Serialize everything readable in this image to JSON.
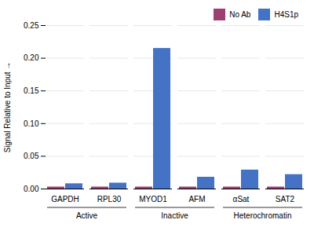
{
  "chart_data": {
    "type": "bar",
    "categories": [
      "GAPDH",
      "RPL30",
      "MYOD1",
      "AFM",
      "αSat",
      "SAT2"
    ],
    "series": [
      {
        "name": "No Ab",
        "color": "#9B4070",
        "values": [
          0.003,
          0.003,
          0.003,
          0.003,
          0.003,
          0.003
        ]
      },
      {
        "name": "H4S1p",
        "color": "#4472C4",
        "values": [
          0.008,
          0.009,
          0.215,
          0.018,
          0.029,
          0.022
        ]
      }
    ],
    "ylabel": "Signal Relative to Input",
    "ylim": [
      0,
      0.25
    ],
    "yticks": [
      {
        "value": 0,
        "label": "0.00"
      },
      0.05,
      {
        "value": 0.1,
        "label": "0.10"
      },
      0.15,
      {
        "value": 0.2,
        "label": "0.20"
      },
      0.25
    ],
    "grid": true,
    "legend": "upper right",
    "annotations": [
      {
        "text": "Active",
        "from": "GAPDH",
        "to": "RPL30"
      },
      {
        "text": "Inactive",
        "from": "MYOD1",
        "to": "AFM"
      },
      {
        "text": "Heterochromatin",
        "from": "αSat",
        "to": "SAT2"
      }
    ]
  }
}
